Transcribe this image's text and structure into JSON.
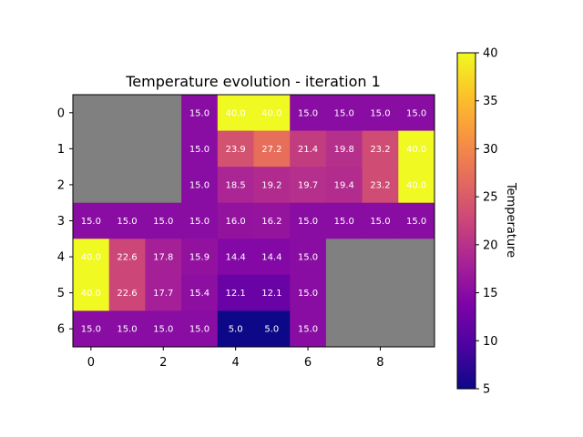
{
  "chart_data": {
    "type": "heatmap",
    "title": "Temperature evolution - iteration 1",
    "colorbar_label": "Temperature",
    "vmin": 5,
    "vmax": 40,
    "colorbar_ticks": [
      5,
      10,
      15,
      20,
      25,
      30,
      35,
      40
    ],
    "x_ticks": [
      0,
      2,
      4,
      6,
      8
    ],
    "y_ticks": [
      0,
      1,
      2,
      3,
      4,
      5,
      6
    ],
    "colormap": "plasma",
    "masked_color": "#808080",
    "grid": false,
    "rows": [
      [
        null,
        null,
        null,
        15.0,
        40.0,
        40.0,
        15.0,
        15.0,
        15.0,
        15.0
      ],
      [
        null,
        null,
        null,
        15.0,
        23.9,
        27.2,
        21.4,
        19.8,
        23.2,
        40.0
      ],
      [
        null,
        null,
        null,
        15.0,
        18.5,
        19.2,
        19.7,
        19.4,
        23.2,
        40.0
      ],
      [
        15.0,
        15.0,
        15.0,
        15.0,
        16.0,
        16.2,
        15.0,
        15.0,
        15.0,
        15.0
      ],
      [
        40.0,
        22.6,
        17.8,
        15.9,
        14.4,
        14.4,
        15.0,
        null,
        null,
        null
      ],
      [
        40.0,
        22.6,
        17.7,
        15.4,
        12.1,
        12.1,
        15.0,
        null,
        null,
        null
      ],
      [
        15.0,
        15.0,
        15.0,
        15.0,
        5.0,
        5.0,
        15.0,
        null,
        null,
        null
      ]
    ]
  }
}
